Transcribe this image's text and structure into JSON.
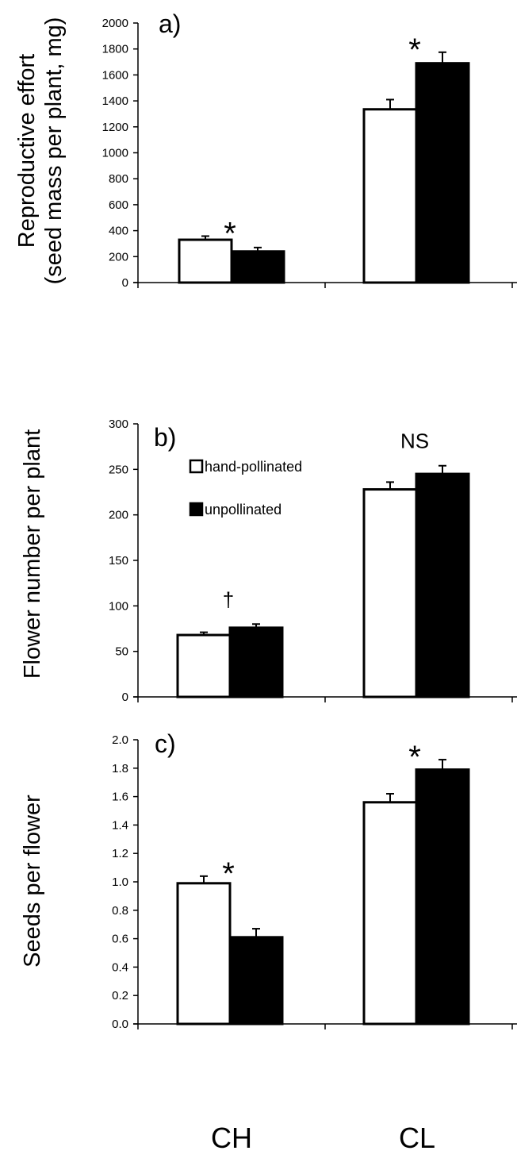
{
  "chart_data": [
    {
      "type": "bar",
      "panel_label": "a)",
      "categories": [
        "CH",
        "CL"
      ],
      "ylabel": "Reproductive effort (seed mass per plant, mg)",
      "ylim": [
        0,
        2000
      ],
      "yticks": [
        "0",
        "200",
        "400",
        "600",
        "800",
        "1000",
        "1200",
        "1400",
        "1600",
        "1800",
        "2000"
      ],
      "series": [
        {
          "name": "hand-pollinated",
          "color": "#ffffff",
          "values": [
            330,
            1335
          ],
          "errors": [
            28,
            75
          ]
        },
        {
          "name": "unpollinated",
          "color": "#000000",
          "values": [
            240,
            1690
          ],
          "errors": [
            30,
            85
          ]
        }
      ],
      "annotations": [
        "*",
        "*"
      ]
    },
    {
      "type": "bar",
      "panel_label": "b)",
      "categories": [
        "CH",
        "CL"
      ],
      "ylabel": "Flower number per plant",
      "ylim": [
        0,
        300
      ],
      "yticks": [
        "0",
        "50",
        "100",
        "150",
        "200",
        "250",
        "300"
      ],
      "series": [
        {
          "name": "hand-pollinated",
          "color": "#ffffff",
          "values": [
            68,
            228
          ],
          "errors": [
            3,
            8
          ]
        },
        {
          "name": "unpollinated",
          "color": "#000000",
          "values": [
            76,
            245
          ],
          "errors": [
            4,
            9
          ]
        }
      ],
      "annotations": [
        "†",
        "NS"
      ],
      "legend": {
        "placement": "top-left",
        "entries": [
          "hand-pollinated",
          "unpollinated"
        ]
      }
    },
    {
      "type": "bar",
      "panel_label": "c)",
      "categories": [
        "CH",
        "CL"
      ],
      "ylabel": "Seeds per flower",
      "ylim": [
        0,
        2
      ],
      "yticks": [
        "0.0",
        "0.2",
        "0.4",
        "0.6",
        "0.8",
        "1.0",
        "1.2",
        "1.4",
        "1.6",
        "1.8",
        "2.0"
      ],
      "series": [
        {
          "name": "hand-pollinated",
          "color": "#ffffff",
          "values": [
            0.99,
            1.56
          ],
          "errors": [
            0.05,
            0.06
          ]
        },
        {
          "name": "unpollinated",
          "color": "#000000",
          "values": [
            0.61,
            1.79
          ],
          "errors": [
            0.06,
            0.07
          ]
        }
      ],
      "annotations": [
        "*",
        "*"
      ]
    }
  ],
  "x_categories": [
    "CH",
    "CL"
  ]
}
